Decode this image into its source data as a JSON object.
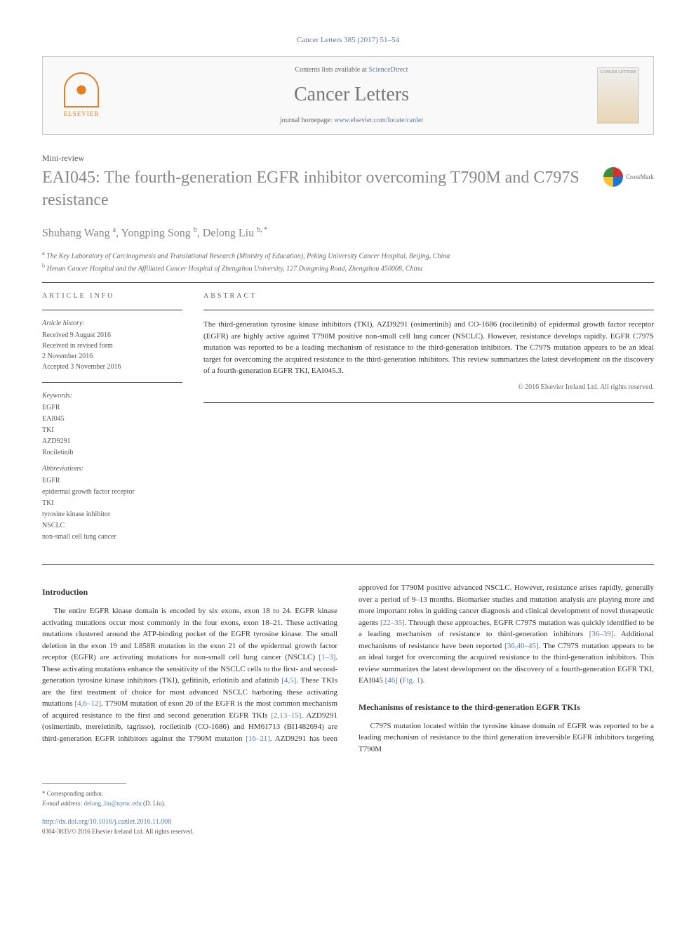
{
  "journal_ref": "Cancer Letters 385 (2017) 51–54",
  "header": {
    "contents_prefix": "Contents lists available at ",
    "contents_link": "ScienceDirect",
    "journal_name": "Cancer Letters",
    "homepage_prefix": "journal homepage: ",
    "homepage_link": "www.elsevier.com/locate/canlet",
    "publisher": "ELSEVIER",
    "cover_label": "CANCER LETTERS"
  },
  "article_type": "Mini-review",
  "title": "EAI045: The fourth-generation EGFR inhibitor overcoming T790M and C797S resistance",
  "crossmark": "CrossMark",
  "authors_html": "Shuhang Wang <sup>a</sup>, Yongping Song <sup>b</sup>, Delong Liu <sup>b, *</sup>",
  "affiliations": [
    {
      "marker": "a",
      "text": "The Key Laboratory of Carcinogenesis and Translational Research (Ministry of Education), Peking University Cancer Hospital, Beijing, China"
    },
    {
      "marker": "b",
      "text": "Henan Cancer Hospital and the Affiliated Cancer Hospital of Zhengzhou University, 127 Dongming Road, Zhengzhou 450008, China"
    }
  ],
  "info": {
    "heading": "ARTICLE INFO",
    "history_label": "Article history:",
    "history": "Received 9 August 2016\nReceived in revised form\n2 November 2016\nAccepted 3 November 2016",
    "keywords_label": "Keywords:",
    "keywords": [
      "EGFR",
      "EAI045",
      "TKI",
      "AZD9291",
      "Rociletinib"
    ],
    "abbrev_label": "Abbreviations:",
    "abbreviations": [
      {
        "term": "EGFR",
        "def": "epidermal growth factor receptor"
      },
      {
        "term": "TKI",
        "def": "tyrosine kinase inhibitor"
      },
      {
        "term": "NSCLC",
        "def": "non-small cell lung cancer"
      }
    ]
  },
  "abstract": {
    "heading": "ABSTRACT",
    "text": "The third-generation tyrosine kinase inhibitors (TKI), AZD9291 (osimertinib) and CO-1686 (rociletinib) of epidermal growth factor receptor (EGFR) are highly active against T790M positive non-small cell lung cancer (NSCLC). However, resistance develops rapidly. EGFR C797S mutation was reported to be a leading mechanism of resistance to the third-generation inhibitors. The C797S mutation appears to be an ideal target for overcoming the acquired resistance to the third-generation inhibitors. This review summarizes the latest development on the discovery of a fourth-generation EGFR TKI, EAI045.3.",
    "copyright": "© 2016 Elsevier Ireland Ltd. All rights reserved."
  },
  "body": {
    "intro_heading": "Introduction",
    "intro_p1": "The entire EGFR kinase domain is encoded by six exons, exon 18 to 24. EGFR kinase activating mutations occur most commonly in the four exons, exon 18–21. These activating mutations clustered around the ATP-binding pocket of the EGFR tyrosine kinase. The small deletion in the exon 19 and L858R mutation in the exon 21 of the epidermal growth factor receptor (EGFR) are activating mutations for non-small cell lung cancer (NSCLC) ",
    "intro_ref1": "[1–3]",
    "intro_p1b": ". These activating mutations enhance the sensitivity of the NSCLC cells to the first- and second-generation tyrosine kinase inhibitors (TKI), gefitinib, erlotinib and afatinib ",
    "intro_ref2": "[4,5]",
    "intro_p1c": ". These TKIs are the first treatment of choice for most advanced NSCLC harboring these activating mutations ",
    "intro_ref3": "[4,6–12]",
    "intro_p1d": ". T790M mutation of exon 20 of the EGFR is the most common mechanism of acquired resistance to the first and second generation EGFR TKIs ",
    "intro_ref4": "[2,13–15]",
    "intro_p1e": ". AZD9291 (osimertinib, mereletinib, tagrisso), rociletinib (CO-1686) and HM61713 (BI1482694) are third-generation EGFR inhibitors against the T790M mutation ",
    "intro_ref5": "[16–21]",
    "intro_p2": ". AZD9291 has been approved for T790M positive advanced NSCLC. However, resistance arises rapidly, generally over a period of 9–13 months. Biomarker studies and mutation analysis are playing more and more important roles in guiding cancer diagnosis and clinical development of novel therapeutic agents ",
    "intro_ref6": "[22–35]",
    "intro_p2b": ". Through these approaches, EGFR C797S mutation was quickly identified to be a leading mechanism of resistance to third-generation inhibitors ",
    "intro_ref7": "[36–39]",
    "intro_p2c": ". Additional mechanisms of resistance have been reported ",
    "intro_ref8": "[36,40–45]",
    "intro_p2d": ". The C797S mutation appears to be an ideal target for overcoming the acquired resistance to the third-generation inhibitors. This review summarizes the latest development on the discovery of a fourth-generation EGFR TKI, EAI045 ",
    "intro_ref9": "[46]",
    "intro_p2e": " (",
    "intro_fig": "Fig. 1",
    "intro_p2f": ").",
    "mech_heading": "Mechanisms of resistance to the third-generation EGFR TKIs",
    "mech_p1": "C797S mutation located within the tyrosine kinase domain of EGFR was reported to be a leading mechanism of resistance to the third generation irreversible EGFR inhibitors targeting T790M"
  },
  "footer": {
    "corresponding": "* Corresponding author.",
    "email_label": "E-mail address: ",
    "email": "delong_liu@nymc.edu",
    "email_suffix": " (D. Liu).",
    "doi": "http://dx.doi.org/10.1016/j.canlet.2016.11.008",
    "issn": "0304-3835/© 2016 Elsevier Ireland Ltd. All rights reserved."
  }
}
